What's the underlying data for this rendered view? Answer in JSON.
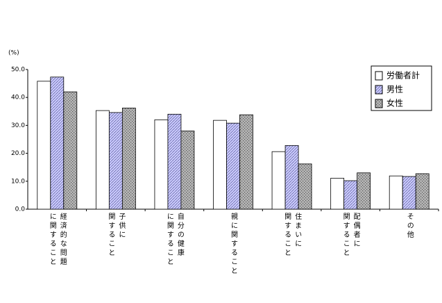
{
  "chart_data": {
    "type": "bar",
    "y_label": "(%)",
    "categories": [
      "経済的な問題\nに関すること",
      "子供に\n関すること",
      "自分の健康\nに関すること",
      "親に関すること",
      "住まいに\n関すること",
      "配偶者に\n関すること",
      "その他"
    ],
    "series": [
      {
        "name": "労働者計",
        "color": "#ffffff",
        "values": [
          45.8,
          35.3,
          32.0,
          31.8,
          20.6,
          11.1,
          11.9
        ]
      },
      {
        "name": "男性",
        "color": "#ccccff",
        "values": [
          47.3,
          34.6,
          34.0,
          30.8,
          22.8,
          10.2,
          11.7
        ]
      },
      {
        "name": "女性",
        "color": "#b4b4b4",
        "values": [
          42.0,
          36.2,
          28.0,
          33.8,
          16.2,
          13.0,
          12.7
        ]
      }
    ],
    "ylim": [
      0,
      50
    ],
    "yticks": [
      {
        "value": 0,
        "label": "0.0"
      },
      {
        "value": 10,
        "label": "10.0"
      },
      {
        "value": 20,
        "label": "20.0"
      },
      {
        "value": 30,
        "label": "30.0"
      },
      {
        "value": 40,
        "label": "40.0"
      },
      {
        "value": 50,
        "label": "50.0"
      }
    ],
    "legend": "top-right"
  }
}
